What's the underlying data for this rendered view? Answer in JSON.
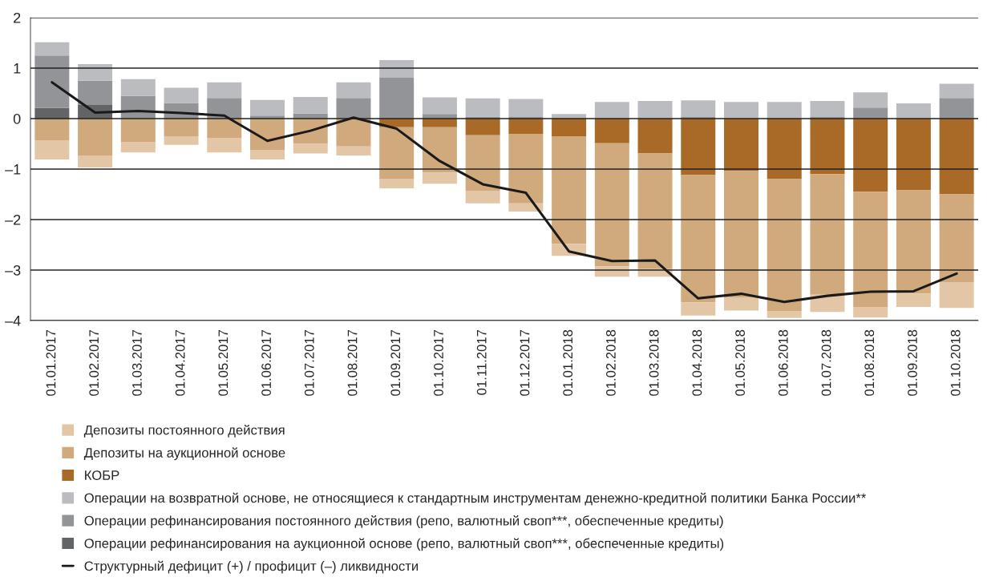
{
  "chart_data": {
    "type": "bar",
    "stacked": true,
    "categories": [
      "01.01.2017",
      "01.02.2017",
      "01.03.2017",
      "01.04.2017",
      "01.05.2017",
      "01.06.2017",
      "01.07.2017",
      "01.08.2017",
      "01.09.2017",
      "01.10.2017",
      "01.11.2017",
      "01.12.2017",
      "01.01.2018",
      "01.02.2018",
      "01.03.2018",
      "01.04.2018",
      "01.05.2018",
      "01.06.2018",
      "01.07.2018",
      "01.08.2018",
      "01.09.2018",
      "01.10.2018"
    ],
    "series": [
      {
        "name": "КОБР",
        "color": "#a86a26",
        "values": [
          0,
          0,
          0,
          0,
          0,
          0,
          0,
          0,
          -0.17,
          -0.17,
          -0.33,
          -0.3,
          -0.35,
          -0.49,
          -0.69,
          -1.12,
          -1.04,
          -1.2,
          -1.1,
          -1.45,
          -1.42,
          -1.5
        ]
      },
      {
        "name": "Депозиты на аукционной основе",
        "color": "#d0a97c",
        "values": [
          -0.43,
          -0.73,
          -0.46,
          -0.35,
          -0.38,
          -0.62,
          -0.5,
          -0.55,
          -1.02,
          -0.9,
          -1.1,
          -1.38,
          -2.13,
          -2.44,
          -2.29,
          -2.52,
          -2.5,
          -2.61,
          -2.39,
          -2.28,
          -2.05,
          -1.74
        ]
      },
      {
        "name": "Депозиты постоянного действия",
        "color": "#e3c6a6",
        "values": [
          -0.38,
          -0.24,
          -0.21,
          -0.17,
          -0.29,
          -0.19,
          -0.19,
          -0.18,
          -0.19,
          -0.22,
          -0.25,
          -0.16,
          -0.24,
          -0.2,
          -0.15,
          -0.26,
          -0.26,
          -0.14,
          -0.34,
          -0.21,
          -0.26,
          -0.51
        ]
      },
      {
        "name": "Операции рефинансирования на аукционной основе (репо, валютный своп***, обеспеченные кредиты)",
        "color": "#636466",
        "values": [
          0.21,
          0.27,
          0,
          0,
          0,
          0,
          0,
          0,
          0,
          0,
          0,
          0,
          0,
          0,
          0,
          0,
          0,
          0,
          0,
          0,
          0,
          0
        ]
      },
      {
        "name": "Операции рефинансирования постоянного действия (репо, валютный своп***, обеспеченные кредиты)",
        "color": "#939498",
        "values": [
          1.04,
          0.48,
          0.45,
          0.31,
          0.41,
          0.06,
          0.1,
          0.41,
          0.81,
          0.09,
          0.04,
          0.03,
          0,
          0,
          0,
          0.03,
          0,
          0,
          0.03,
          0.22,
          0,
          0.41
        ]
      },
      {
        "name": "Операции на возвратной основе, не относящиеся к стандартным инструментам денежно-кредитной политики Банка России**",
        "color": "#bbbcc0",
        "values": [
          0.26,
          0.33,
          0.33,
          0.3,
          0.31,
          0.31,
          0.33,
          0.31,
          0.35,
          0.33,
          0.36,
          0.36,
          0.09,
          0.33,
          0.35,
          0.33,
          0.33,
          0.33,
          0.32,
          0.3,
          0.3,
          0.28
        ]
      },
      {
        "type": "line",
        "name": "Структурный дефицит (+) / профицит (–) ликвидности",
        "color": "#1a1a1a",
        "values": [
          0.72,
          0.12,
          0.15,
          0.11,
          0.06,
          -0.44,
          -0.24,
          0.02,
          -0.2,
          -0.84,
          -1.3,
          -1.47,
          -2.63,
          -2.82,
          -2.81,
          -3.56,
          -3.47,
          -3.63,
          -3.51,
          -3.43,
          -3.42,
          -3.07
        ]
      }
    ],
    "ylim": [
      -4,
      2
    ],
    "yticks": [
      {
        "value": -4,
        "label": "–4"
      },
      {
        "value": -3,
        "label": "–3"
      },
      {
        "value": -2,
        "label": "–2"
      },
      {
        "value": -1,
        "label": "–1"
      },
      0,
      1,
      2
    ],
    "grid": "y",
    "legend": "bottom"
  }
}
